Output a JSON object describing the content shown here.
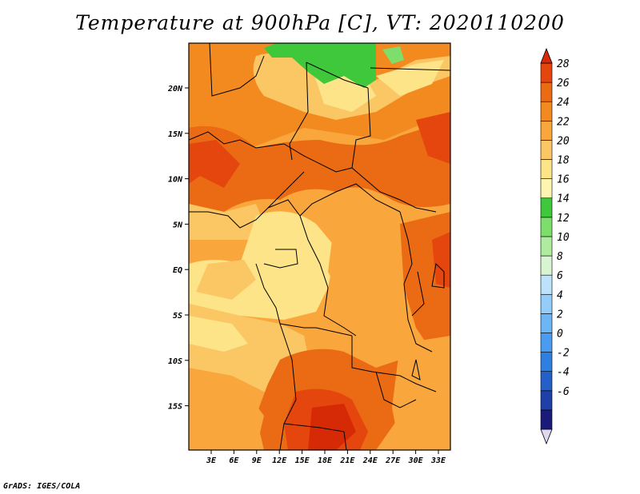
{
  "title": "Temperature at 900hPa [C], VT: 2020110200",
  "credit": "GrADS: IGES/COLA",
  "map": {
    "lat_labels": [
      "20N",
      "15N",
      "10N",
      "5N",
      "EQ",
      "5S",
      "10S",
      "15S"
    ],
    "lon_labels": [
      "3E",
      "6E",
      "9E",
      "12E",
      "15E",
      "18E",
      "21E",
      "24E",
      "27E",
      "30E",
      "33E"
    ]
  },
  "colorbar": {
    "labels": [
      "28",
      "26",
      "24",
      "22",
      "20",
      "18",
      "16",
      "14",
      "12",
      "10",
      "8",
      "6",
      "4",
      "2",
      "0",
      "-2",
      "-4",
      "-6"
    ],
    "colors": [
      "#e0d8f0",
      "#1a1a78",
      "#1f40a8",
      "#2560c8",
      "#2f7fe0",
      "#4a9cf0",
      "#6cb6f6",
      "#94cdfa",
      "#bde3fc",
      "#d8f4d0",
      "#b0eca0",
      "#7ede6c",
      "#3fc83c",
      "#fef6b0",
      "#fde488",
      "#fbc664",
      "#f9a63c",
      "#f38a20",
      "#eb6a14",
      "#e4460e",
      "#d62a06"
    ]
  }
}
